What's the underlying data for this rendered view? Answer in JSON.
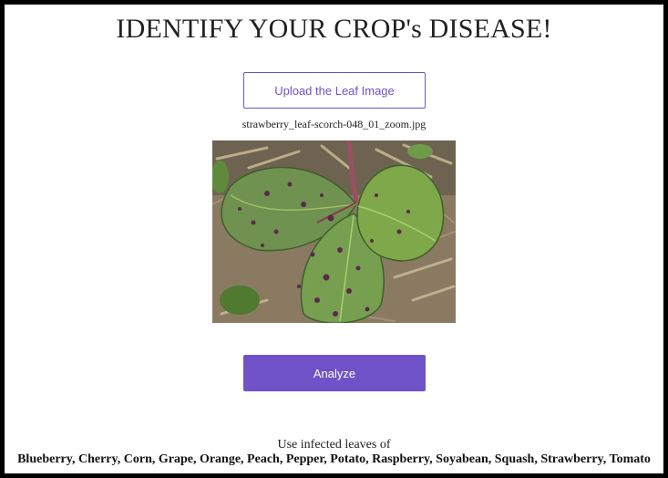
{
  "page": {
    "title": "IDENTIFY YOUR CROP's DISEASE!"
  },
  "upload": {
    "button_label": "Upload the Leaf Image",
    "filename": "strawberry_leaf-scorch-048_01_zoom.jpg"
  },
  "preview": {
    "alt": "strawberry leaf image"
  },
  "analyze": {
    "button_label": "Analyze"
  },
  "footer": {
    "intro": "Use infected leaves of",
    "crops": "Blueberry, Cherry, Corn, Grape, Orange, Peach, Pepper, Potato, Raspberry, Soyabean, Squash, Strawberry, Tomato"
  },
  "colors": {
    "accent": "#6f52c8",
    "text": "#222222",
    "frame": "#000000"
  }
}
